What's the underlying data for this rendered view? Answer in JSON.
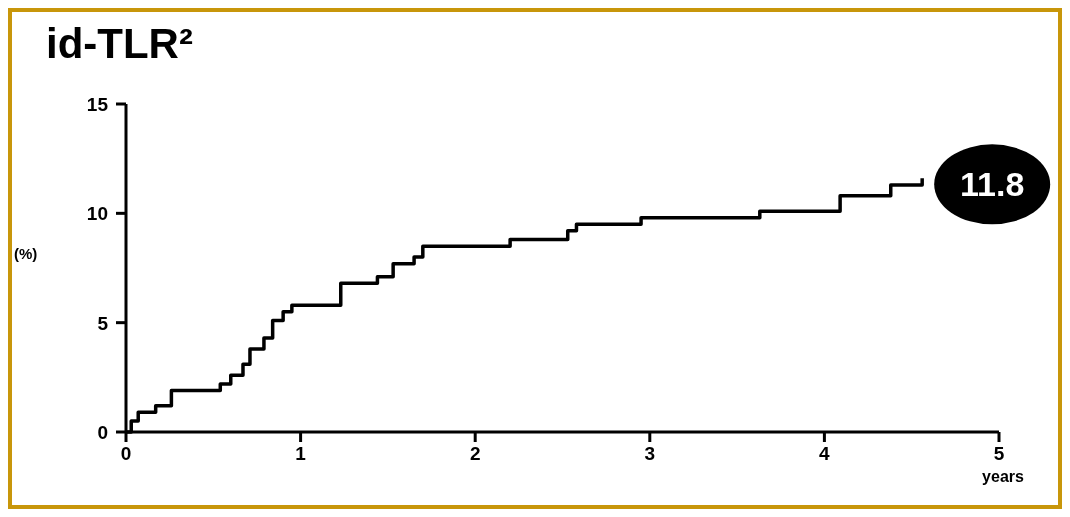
{
  "chart_data": {
    "type": "step",
    "title": "id-TLR²",
    "xlabel": "years",
    "ylabel": "(%)",
    "xlim": [
      0,
      5
    ],
    "xticks": [
      0,
      1,
      2,
      3,
      4,
      5
    ],
    "ylim": [
      0,
      15
    ],
    "yticks": [
      0,
      5,
      10,
      15
    ],
    "grid": false,
    "marker": "none",
    "line_style": "solid",
    "x": [
      0,
      0.03,
      0.07,
      0.17,
      0.26,
      0.54,
      0.6,
      0.67,
      0.71,
      0.79,
      0.84,
      0.9,
      0.95,
      1.23,
      1.44,
      1.53,
      1.65,
      1.7,
      2.2,
      2.53,
      2.58,
      2.95,
      3.63,
      4.09,
      4.38,
      4.56
    ],
    "series": [
      {
        "color": "#000000",
        "values": [
          0,
          0.5,
          0.9,
          1.2,
          1.9,
          2.2,
          2.6,
          3.1,
          3.8,
          4.3,
          5.1,
          5.5,
          5.8,
          6.8,
          7.1,
          7.7,
          8.0,
          8.5,
          8.8,
          9.2,
          9.5,
          9.8,
          10.1,
          10.8,
          11.3,
          11.6
        ]
      }
    ],
    "annotations": [
      "11.8"
    ]
  }
}
